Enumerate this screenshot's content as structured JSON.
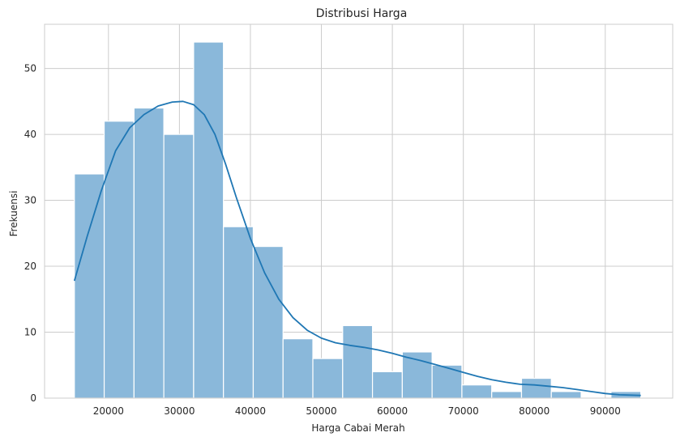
{
  "chart_data": {
    "type": "bar",
    "title": "Distribusi Harga",
    "xlabel": "Harga Cabai Merah",
    "ylabel": "Frekuensi",
    "xlim": [
      11000,
      99500
    ],
    "ylim": [
      0,
      56.7
    ],
    "xticks": [
      20000,
      30000,
      40000,
      50000,
      60000,
      70000,
      80000,
      90000
    ],
    "xtick_labels": [
      "20000",
      "30000",
      "40000",
      "50000",
      "60000",
      "70000",
      "80000",
      "90000"
    ],
    "yticks": [
      0,
      10,
      20,
      30,
      40,
      50
    ],
    "ytick_labels": [
      "0",
      "10",
      "20",
      "30",
      "40",
      "50"
    ],
    "grid": true,
    "bin_edges": [
      15200,
      19400,
      23600,
      27800,
      32000,
      36200,
      40400,
      44600,
      48800,
      53000,
      57200,
      61400,
      65600,
      69800,
      74000,
      78200,
      82400,
      86600,
      90800,
      95000
    ],
    "values": [
      34,
      42,
      44,
      40,
      54,
      26,
      23,
      9,
      6,
      11,
      4,
      7,
      5,
      2,
      1,
      3,
      1,
      0,
      1
    ],
    "bar_color": "#8ab8da",
    "bar_edge_color": "#ffffff",
    "kde": {
      "color": "#1f77b4",
      "x": [
        15200,
        17000,
        19000,
        21000,
        23000,
        25000,
        27000,
        29000,
        30500,
        32000,
        33500,
        35000,
        36500,
        38000,
        40000,
        42000,
        44000,
        46000,
        48000,
        50000,
        52000,
        54000,
        56000,
        58000,
        60000,
        62000,
        64000,
        66000,
        68000,
        70000,
        72000,
        74000,
        76000,
        78000,
        80000,
        82000,
        84000,
        86000,
        88000,
        90000,
        92000,
        95000
      ],
      "y": [
        17.8,
        24.5,
        31.5,
        37.5,
        41,
        43,
        44.3,
        44.9,
        45,
        44.5,
        43,
        40,
        35.5,
        30.5,
        24.2,
        19,
        15,
        12.2,
        10.3,
        9.1,
        8.4,
        8,
        7.7,
        7.3,
        6.8,
        6.2,
        5.7,
        5.1,
        4.5,
        3.9,
        3.3,
        2.8,
        2.4,
        2.1,
        2.0,
        1.8,
        1.6,
        1.3,
        1.0,
        0.7,
        0.5,
        0.4
      ]
    }
  }
}
